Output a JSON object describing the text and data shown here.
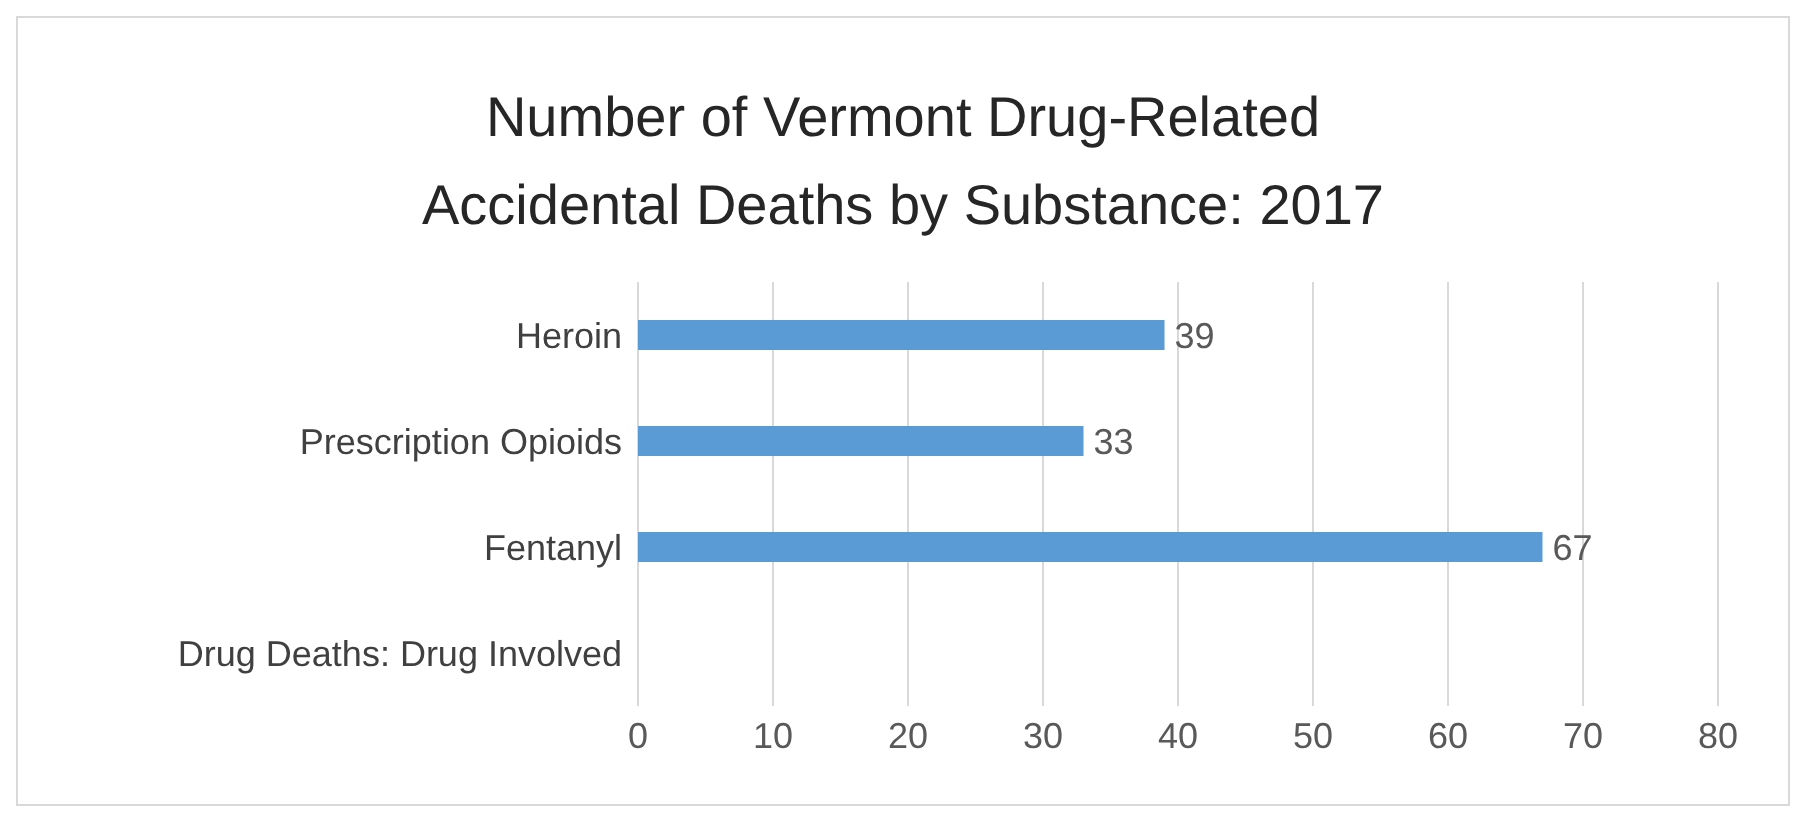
{
  "chart_data": {
    "type": "bar",
    "title": "Number of Vermont Drug-Related Accidental Deaths by Substance: 2017",
    "orientation": "horizontal",
    "categories": [
      "Heroin",
      "Prescription Opioids",
      "Fentanyl",
      "Drug Deaths: Drug Involved"
    ],
    "values": [
      39,
      33,
      67,
      null
    ],
    "color": "#5b9bd5",
    "data_labels": true,
    "xlim": [
      0,
      80
    ],
    "xticks": [
      0,
      10,
      20,
      30,
      40,
      50,
      60,
      70,
      80
    ],
    "grid": "x"
  }
}
